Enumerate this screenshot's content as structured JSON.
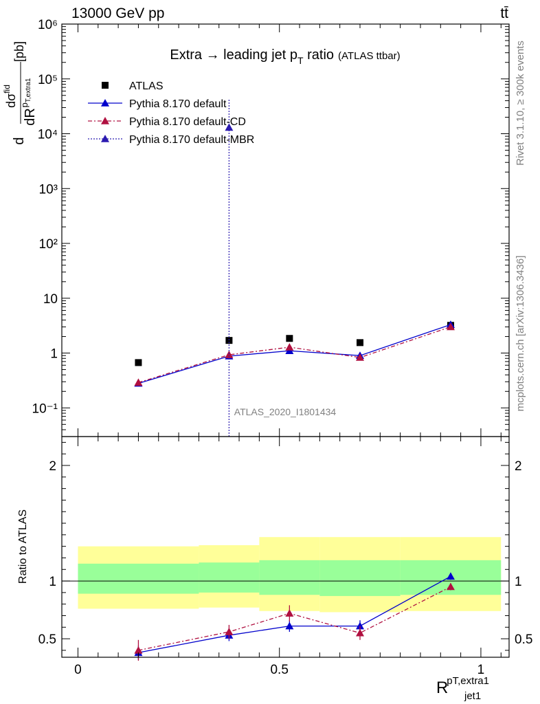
{
  "header": {
    "energy_label": "13000 GeV pp",
    "process_label": "tt̄"
  },
  "side_labels": {
    "rivet": "Rivet 3.1.10, ≥ 300k events",
    "mcplots": "mcplots.cern.ch [arXiv:1306.3436]"
  },
  "chart_data": [
    {
      "type": "scatter",
      "panel": "main",
      "title": "Extra → leading jet p",
      "title_sub": "T",
      "title_tail": " ratio",
      "title_note": "(ATLAS ttbar)",
      "analysis_tag": "ATLAS_2020_I1801434",
      "ylabel": "dσ/dR [pb]",
      "yscale": "log",
      "ylim": [
        0.03,
        1000000
      ],
      "xlim": [
        -0.04,
        1.07
      ],
      "y_tick_labels": [
        "10⁻¹",
        "1",
        "10",
        "10²",
        "10³",
        "10⁴",
        "10⁵",
        "10⁶"
      ],
      "legend_position": "top-left",
      "series": [
        {
          "name": "ATLAS",
          "color": "#000000",
          "marker": "square",
          "x": [
            0.15,
            0.375,
            0.525,
            0.7,
            0.925
          ],
          "y": [
            0.67,
            1.7,
            1.85,
            1.55,
            3.2
          ],
          "xerr": [
            0.15,
            0.075,
            0.075,
            0.1,
            0.125
          ]
        },
        {
          "name": "Pythia 8.170 default",
          "color": "#0000cc",
          "marker": "triangle",
          "dash": "solid",
          "x": [
            0.15,
            0.375,
            0.525,
            0.7,
            0.925
          ],
          "y": [
            0.28,
            0.88,
            1.1,
            0.9,
            3.3
          ]
        },
        {
          "name": "Pythia 8.170 default-CD",
          "color": "#b01040",
          "marker": "triangle",
          "dash": "dashdot",
          "x": [
            0.15,
            0.375,
            0.525,
            0.7,
            0.925
          ],
          "y": [
            0.29,
            0.93,
            1.28,
            0.83,
            3.0
          ]
        },
        {
          "name": "Pythia 8.170 default-MBR",
          "color": "#2b1ab0",
          "marker": "triangle",
          "dash": "dotted",
          "x": [
            0.375
          ],
          "y": [
            13000
          ]
        }
      ]
    },
    {
      "type": "scatter",
      "panel": "ratio",
      "ylabel": "Ratio to ATLAS",
      "xlabel": "R",
      "xlabel_sup": "pT,extra1",
      "xlabel_sub": "jet1",
      "ylim": [
        0.34,
        2.25
      ],
      "xlim": [
        -0.04,
        1.07
      ],
      "x_tick_labels": [
        "0",
        "0.5",
        "1"
      ],
      "y_tick_labels": [
        "0.5",
        "1",
        "2"
      ],
      "bands": [
        {
          "x0": 0.0,
          "x1": 0.3,
          "yellow": [
            0.76,
            1.3
          ],
          "green": [
            0.89,
            1.15
          ]
        },
        {
          "x0": 0.3,
          "x1": 0.45,
          "yellow": [
            0.77,
            1.31
          ],
          "green": [
            0.9,
            1.16
          ]
        },
        {
          "x0": 0.45,
          "x1": 0.6,
          "yellow": [
            0.74,
            1.38
          ],
          "green": [
            0.88,
            1.18
          ]
        },
        {
          "x0": 0.6,
          "x1": 0.8,
          "yellow": [
            0.73,
            1.38
          ],
          "green": [
            0.87,
            1.18
          ]
        },
        {
          "x0": 0.8,
          "x1": 1.05,
          "yellow": [
            0.74,
            1.38
          ],
          "green": [
            0.88,
            1.18
          ]
        }
      ],
      "series": [
        {
          "name": "Pythia 8.170 default",
          "color": "#0000cc",
          "dash": "solid",
          "x": [
            0.15,
            0.375,
            0.525,
            0.7,
            0.925
          ],
          "y": [
            0.38,
            0.53,
            0.61,
            0.61,
            1.04
          ],
          "yerr": [
            0.06,
            0.05,
            0.05,
            0.05,
            0.03
          ]
        },
        {
          "name": "Pythia 8.170 default-CD",
          "color": "#b01040",
          "dash": "dashdot",
          "x": [
            0.15,
            0.375,
            0.525,
            0.7,
            0.925
          ],
          "y": [
            0.4,
            0.56,
            0.72,
            0.55,
            0.95
          ],
          "yerr": [
            0.09,
            0.06,
            0.07,
            0.06,
            0.03
          ]
        }
      ]
    }
  ]
}
